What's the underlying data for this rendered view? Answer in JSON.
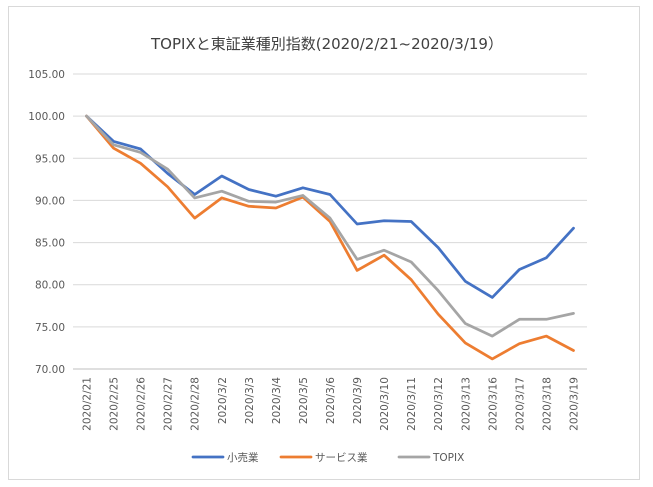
{
  "chart_data": {
    "type": "line",
    "title": "TOPIXと東証業種別指数(2020/2/21~2020/3/19）",
    "xlabel": "",
    "ylabel": "",
    "ylim": [
      70,
      105
    ],
    "yticks": [
      "105.00",
      "100.00",
      "95.00",
      "90.00",
      "85.00",
      "80.00",
      "75.00",
      "70.00"
    ],
    "ytick_values": [
      105,
      100,
      95,
      90,
      85,
      80,
      75,
      70
    ],
    "grid": "horizontal",
    "legend_position": "bottom",
    "categories": [
      "2020/2/21",
      "2020/2/25",
      "2020/2/26",
      "2020/2/27",
      "2020/2/28",
      "2020/3/2",
      "2020/3/3",
      "2020/3/4",
      "2020/3/5",
      "2020/3/6",
      "2020/3/9",
      "2020/3/10",
      "2020/3/11",
      "2020/3/12",
      "2020/3/13",
      "2020/3/16",
      "2020/3/17",
      "2020/3/18",
      "2020/3/19"
    ],
    "series": [
      {
        "name": "小売業",
        "color": "#4472c4",
        "values": [
          100.0,
          97.0,
          96.1,
          93.2,
          90.7,
          92.9,
          91.3,
          90.5,
          91.5,
          90.7,
          87.2,
          87.6,
          87.5,
          84.4,
          80.4,
          78.5,
          81.8,
          83.2,
          86.7
        ]
      },
      {
        "name": "サービス業",
        "color": "#ed7d31",
        "values": [
          100.0,
          96.2,
          94.4,
          91.6,
          87.9,
          90.3,
          89.3,
          89.1,
          90.4,
          87.5,
          81.7,
          83.5,
          80.6,
          76.5,
          73.1,
          71.2,
          73.0,
          73.9,
          72.2
        ]
      },
      {
        "name": "TOPIX",
        "color": "#a5a5a5",
        "values": [
          100.0,
          96.6,
          95.7,
          93.7,
          90.3,
          91.1,
          89.9,
          89.8,
          90.6,
          87.9,
          83.0,
          84.1,
          82.7,
          79.3,
          75.4,
          73.9,
          75.9,
          75.9,
          76.6
        ]
      }
    ]
  }
}
